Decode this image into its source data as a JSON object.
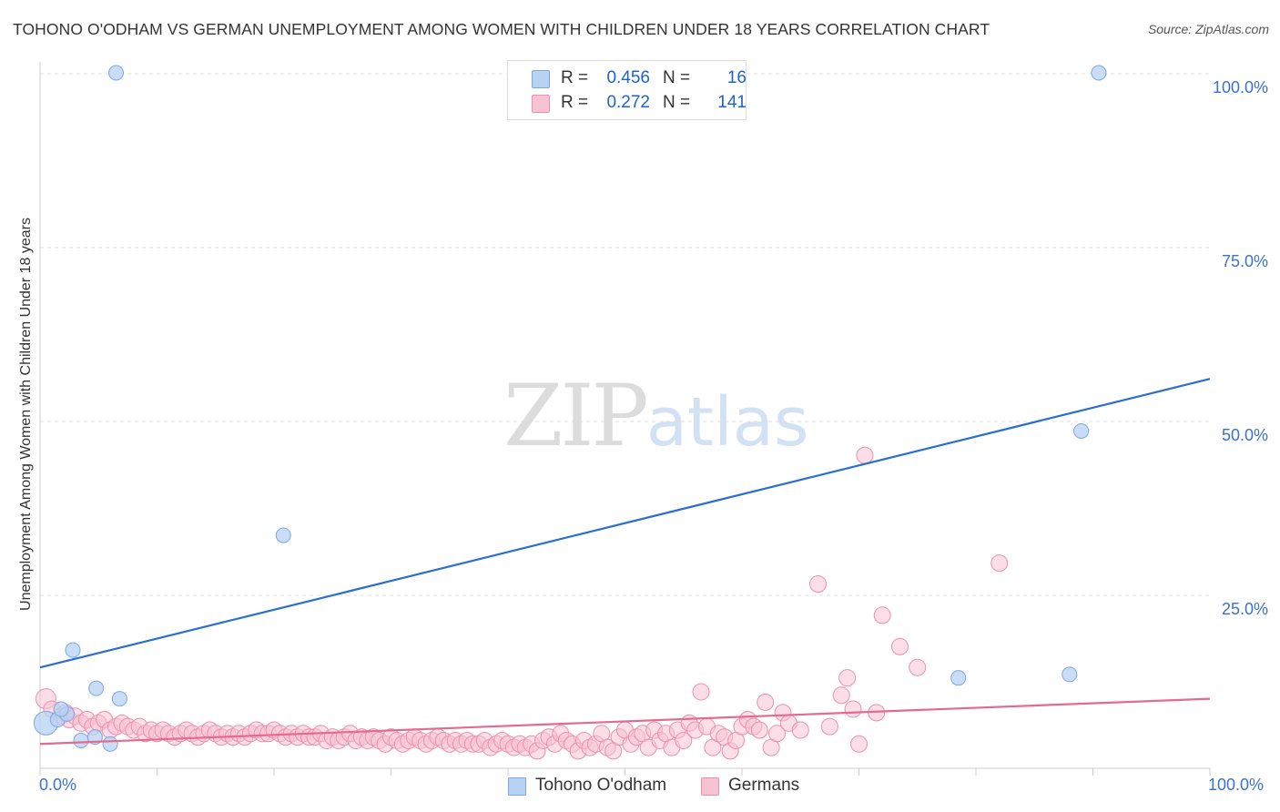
{
  "header": {
    "title": "TOHONO O'ODHAM VS GERMAN UNEMPLOYMENT AMONG WOMEN WITH CHILDREN UNDER 18 YEARS CORRELATION CHART",
    "source": "Source: ZipAtlas.com"
  },
  "watermark": {
    "zip": "ZIP",
    "atlas": "atlas"
  },
  "legend": {
    "rows": [
      {
        "r_label": "R =",
        "r_value": "0.456",
        "n_label": "N =",
        "n_value": "16"
      },
      {
        "r_label": "R =",
        "r_value": "0.272",
        "n_label": "N =",
        "n_value": "141"
      }
    ],
    "bottom": [
      "Tohono O'odham",
      "Germans"
    ]
  },
  "axes": {
    "y_ticks": [
      "100.0%",
      "75.0%",
      "50.0%",
      "25.0%"
    ],
    "x_ticks": [
      "0.0%",
      "100.0%"
    ]
  },
  "colors": {
    "tohono_fill": "#b8d2f3",
    "tohono_stroke": "#7aa7e3",
    "tohono_line": "#2a6fcf",
    "german_fill": "#f7c3d3",
    "german_stroke": "#ec8fab",
    "german_line": "#e46a90",
    "grid": "#dddddd",
    "tick_text": "#3c72c9"
  },
  "chart_data": {
    "type": "scatter",
    "title": "TOHONO O'ODHAM VS GERMAN UNEMPLOYMENT AMONG WOMEN WITH CHILDREN UNDER 18 YEARS CORRELATION CHART",
    "xlabel": "",
    "ylabel": "Unemployment Among Women with Children Under 18 years",
    "xlim": [
      0,
      100
    ],
    "ylim": [
      0,
      100
    ],
    "series": [
      {
        "name": "Tohono O'odham",
        "r": 0.456,
        "n": 16,
        "trend": {
          "x": [
            0,
            100
          ],
          "y": [
            14.5,
            56.0
          ]
        },
        "points": [
          [
            0.5,
            6.5
          ],
          [
            1.5,
            7.0
          ],
          [
            2.3,
            7.8
          ],
          [
            1.8,
            8.5
          ],
          [
            2.8,
            17.0
          ],
          [
            3.5,
            4.0
          ],
          [
            4.8,
            11.5
          ],
          [
            4.7,
            4.5
          ],
          [
            6.0,
            3.5
          ],
          [
            6.8,
            10.0
          ],
          [
            6.5,
            100.0
          ],
          [
            20.8,
            33.5
          ],
          [
            89.0,
            48.5
          ],
          [
            88.0,
            13.5
          ],
          [
            78.5,
            13.0
          ],
          [
            90.5,
            100.0
          ]
        ]
      },
      {
        "name": "Germans",
        "r": 0.272,
        "n": 141,
        "trend": {
          "x": [
            0,
            100
          ],
          "y": [
            3.5,
            10.0
          ]
        },
        "points": [
          [
            0.5,
            10.0
          ],
          [
            1.0,
            8.5
          ],
          [
            1.8,
            7.5
          ],
          [
            2.2,
            8.0
          ],
          [
            2.5,
            7.0
          ],
          [
            3.0,
            7.5
          ],
          [
            3.5,
            6.5
          ],
          [
            4.0,
            7.0
          ],
          [
            4.5,
            6.0
          ],
          [
            5.0,
            6.5
          ],
          [
            5.5,
            7.0
          ],
          [
            6.0,
            5.5
          ],
          [
            6.5,
            6.0
          ],
          [
            7.0,
            6.5
          ],
          [
            7.5,
            6.0
          ],
          [
            8.0,
            5.5
          ],
          [
            8.5,
            6.0
          ],
          [
            9.0,
            5.0
          ],
          [
            9.5,
            5.5
          ],
          [
            10.0,
            5.0
          ],
          [
            10.5,
            5.5
          ],
          [
            11.0,
            5.0
          ],
          [
            11.5,
            4.5
          ],
          [
            12.0,
            5.0
          ],
          [
            12.5,
            5.5
          ],
          [
            13.0,
            5.0
          ],
          [
            13.5,
            4.5
          ],
          [
            14.0,
            5.0
          ],
          [
            14.5,
            5.5
          ],
          [
            15.0,
            5.0
          ],
          [
            15.5,
            4.5
          ],
          [
            16.0,
            5.0
          ],
          [
            16.5,
            4.5
          ],
          [
            17.0,
            5.0
          ],
          [
            17.5,
            4.5
          ],
          [
            18.0,
            5.0
          ],
          [
            18.5,
            5.5
          ],
          [
            19.0,
            5.0
          ],
          [
            19.5,
            5.0
          ],
          [
            20.0,
            5.5
          ],
          [
            20.5,
            5.0
          ],
          [
            21.0,
            4.5
          ],
          [
            21.5,
            5.0
          ],
          [
            22.0,
            4.5
          ],
          [
            22.5,
            5.0
          ],
          [
            23.0,
            4.5
          ],
          [
            23.5,
            4.5
          ],
          [
            24.0,
            5.0
          ],
          [
            24.5,
            4.0
          ],
          [
            25.0,
            4.5
          ],
          [
            25.5,
            4.0
          ],
          [
            26.0,
            4.5
          ],
          [
            26.5,
            5.0
          ],
          [
            27.0,
            4.0
          ],
          [
            27.5,
            4.5
          ],
          [
            28.0,
            4.0
          ],
          [
            28.5,
            4.5
          ],
          [
            29.0,
            4.0
          ],
          [
            29.5,
            3.5
          ],
          [
            30.0,
            4.5
          ],
          [
            30.5,
            4.0
          ],
          [
            31.0,
            3.5
          ],
          [
            31.5,
            4.0
          ],
          [
            32.0,
            4.5
          ],
          [
            32.5,
            4.0
          ],
          [
            33.0,
            3.5
          ],
          [
            33.5,
            4.0
          ],
          [
            34.0,
            4.5
          ],
          [
            34.5,
            4.0
          ],
          [
            35.0,
            3.5
          ],
          [
            35.5,
            4.0
          ],
          [
            36.0,
            3.5
          ],
          [
            36.5,
            4.0
          ],
          [
            37.0,
            3.5
          ],
          [
            37.5,
            3.5
          ],
          [
            38.0,
            4.0
          ],
          [
            38.5,
            3.0
          ],
          [
            39.0,
            3.5
          ],
          [
            39.5,
            4.0
          ],
          [
            40.0,
            3.5
          ],
          [
            40.5,
            3.0
          ],
          [
            41.0,
            3.5
          ],
          [
            41.5,
            3.0
          ],
          [
            42.0,
            3.5
          ],
          [
            42.5,
            2.5
          ],
          [
            43.0,
            4.0
          ],
          [
            43.5,
            4.5
          ],
          [
            44.0,
            3.5
          ],
          [
            44.5,
            5.0
          ],
          [
            45.0,
            4.0
          ],
          [
            45.5,
            3.5
          ],
          [
            46.0,
            2.5
          ],
          [
            46.5,
            4.0
          ],
          [
            47.0,
            3.0
          ],
          [
            47.5,
            3.5
          ],
          [
            48.0,
            5.0
          ],
          [
            48.5,
            3.0
          ],
          [
            49.0,
            2.5
          ],
          [
            49.5,
            4.5
          ],
          [
            50.0,
            5.5
          ],
          [
            50.5,
            3.5
          ],
          [
            51.0,
            4.5
          ],
          [
            51.5,
            5.0
          ],
          [
            52.0,
            3.0
          ],
          [
            52.5,
            5.5
          ],
          [
            53.0,
            4.0
          ],
          [
            53.5,
            5.0
          ],
          [
            54.0,
            3.0
          ],
          [
            54.5,
            5.5
          ],
          [
            55.0,
            4.0
          ],
          [
            55.5,
            6.5
          ],
          [
            56.0,
            5.5
          ],
          [
            56.5,
            11.0
          ],
          [
            57.0,
            6.0
          ],
          [
            57.5,
            3.0
          ],
          [
            58.0,
            5.0
          ],
          [
            58.5,
            4.5
          ],
          [
            59.0,
            2.5
          ],
          [
            59.5,
            4.0
          ],
          [
            60.0,
            6.0
          ],
          [
            60.5,
            7.0
          ],
          [
            61.0,
            6.0
          ],
          [
            61.5,
            5.5
          ],
          [
            62.0,
            9.5
          ],
          [
            62.5,
            3.0
          ],
          [
            63.0,
            5.0
          ],
          [
            63.5,
            8.0
          ],
          [
            64.0,
            6.5
          ],
          [
            65.0,
            5.5
          ],
          [
            66.5,
            26.5
          ],
          [
            67.5,
            6.0
          ],
          [
            68.5,
            10.5
          ],
          [
            69.0,
            13.0
          ],
          [
            69.5,
            8.5
          ],
          [
            70.0,
            3.5
          ],
          [
            70.5,
            45.0
          ],
          [
            71.5,
            8.0
          ],
          [
            72.0,
            22.0
          ],
          [
            73.5,
            17.5
          ],
          [
            75.0,
            14.5
          ],
          [
            82.0,
            29.5
          ]
        ]
      }
    ]
  }
}
